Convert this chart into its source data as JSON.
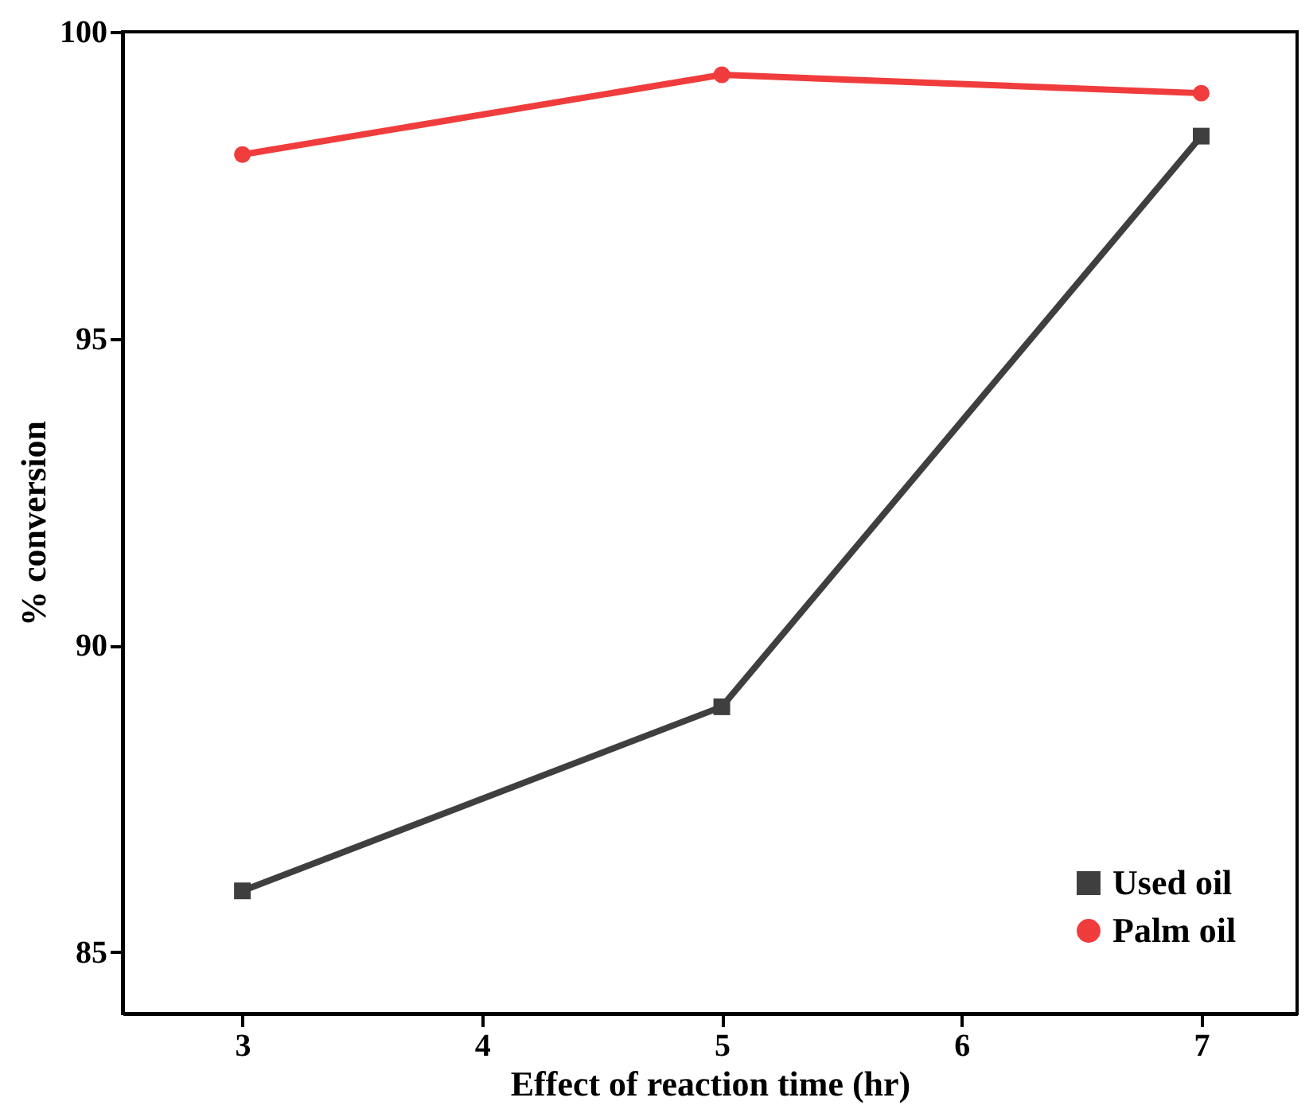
{
  "chart_data": {
    "type": "line",
    "xlabel": "Effect of reaction time (hr)",
    "ylabel": "% conversion",
    "x": [
      3,
      5,
      7
    ],
    "series": [
      {
        "name": "Used oil",
        "color": "#3f3f3f",
        "marker": "square",
        "values": [
          86.0,
          89.0,
          98.3
        ]
      },
      {
        "name": "Palm oil",
        "color": "#f03c3c",
        "marker": "circle",
        "values": [
          98.0,
          99.3,
          99.0
        ]
      }
    ],
    "xlim": [
      2.5,
      7.4
    ],
    "ylim": [
      84,
      100
    ],
    "xticks": [
      3,
      4,
      5,
      6,
      7
    ],
    "yticks": [
      85,
      90,
      95,
      100
    ],
    "grid": false,
    "legend": "bottom right"
  }
}
